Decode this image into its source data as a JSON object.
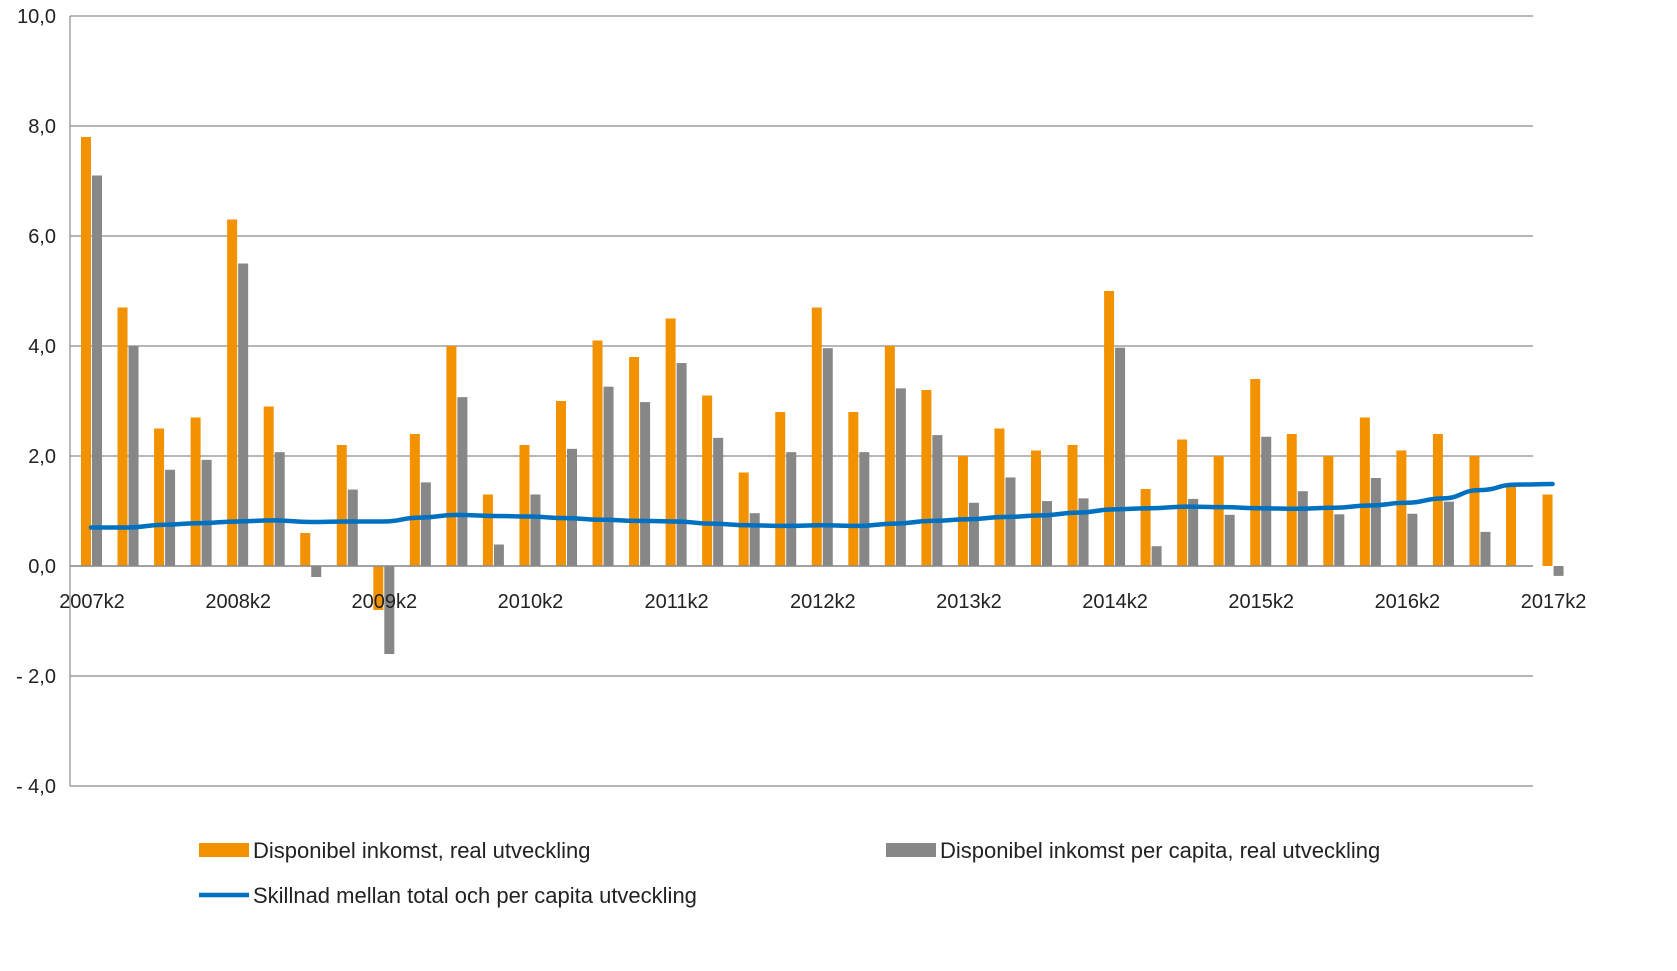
{
  "chart_data": {
    "type": "bar",
    "categories": [
      "2007k2",
      "2007k3",
      "2007k4",
      "2008k1",
      "2008k2",
      "2008k3",
      "2008k4",
      "2009k1",
      "2009k2",
      "2009k3",
      "2009k4",
      "2010k1",
      "2010k2",
      "2010k3",
      "2010k4",
      "2011k1",
      "2011k2",
      "2011k3",
      "2011k4",
      "2012k1",
      "2012k2",
      "2012k3",
      "2012k4",
      "2013k1",
      "2013k2",
      "2013k3",
      "2013k4",
      "2014k1",
      "2014k2",
      "2014k3",
      "2014k4",
      "2015k1",
      "2015k2",
      "2015k3",
      "2015k4",
      "2016k1",
      "2016k2",
      "2016k3",
      "2016k4",
      "2017k1",
      "2017k2"
    ],
    "x_tick_labels": [
      "2007k2",
      "2008k2",
      "2009k2",
      "2010k2",
      "2011k2",
      "2012k2",
      "2013k2",
      "2014k2",
      "2015k2",
      "2016k2",
      "2017k2"
    ],
    "y_tick_labels": [
      "10,0",
      "8,0",
      "6,0",
      "4,0",
      "2,0",
      "0,0",
      "- 2,0",
      "- 4,0"
    ],
    "ylim": [
      -4,
      10
    ],
    "grid": true,
    "legend_position": "bottom",
    "series": [
      {
        "name": "Disponibel inkomst, real utveckling",
        "kind": "bar",
        "color": "#F39200",
        "values": [
          7.8,
          4.7,
          2.5,
          2.7,
          6.3,
          2.9,
          0.6,
          2.2,
          -0.8,
          2.4,
          4.0,
          1.3,
          2.2,
          3.0,
          4.1,
          3.8,
          4.5,
          3.1,
          1.7,
          2.8,
          4.7,
          2.8,
          4.0,
          3.2,
          2.0,
          2.5,
          2.1,
          2.2,
          5.0,
          1.4,
          2.3,
          2.0,
          3.4,
          2.4,
          2.0,
          2.7,
          2.1,
          2.4,
          2.0,
          1.5,
          1.3
        ]
      },
      {
        "name": "Disponibel inkomst per capita, real utveckling",
        "kind": "bar",
        "color": "#878787",
        "values": [
          7.1,
          4.0,
          1.75,
          1.93,
          5.5,
          2.07,
          -0.2,
          1.39,
          -1.6,
          1.52,
          3.07,
          0.39,
          1.3,
          2.13,
          3.26,
          2.98,
          3.69,
          2.33,
          0.96,
          2.07,
          3.96,
          2.07,
          3.23,
          2.38,
          1.15,
          1.61,
          1.18,
          1.23,
          3.97,
          0.36,
          1.22,
          0.93,
          2.35,
          1.36,
          0.94,
          1.6,
          0.95,
          1.17,
          0.62,
          0.0,
          -0.18
        ]
      },
      {
        "name": "Skillnad mellan total och per capita utveckling",
        "kind": "line",
        "color": "#0070C0",
        "values": [
          0.7,
          0.7,
          0.75,
          0.78,
          0.81,
          0.83,
          0.8,
          0.81,
          0.81,
          0.88,
          0.93,
          0.91,
          0.9,
          0.87,
          0.84,
          0.82,
          0.81,
          0.77,
          0.74,
          0.73,
          0.74,
          0.73,
          0.77,
          0.82,
          0.85,
          0.89,
          0.92,
          0.97,
          1.03,
          1.05,
          1.08,
          1.07,
          1.05,
          1.04,
          1.06,
          1.1,
          1.15,
          1.23,
          1.38,
          1.48,
          1.49
        ]
      }
    ]
  }
}
